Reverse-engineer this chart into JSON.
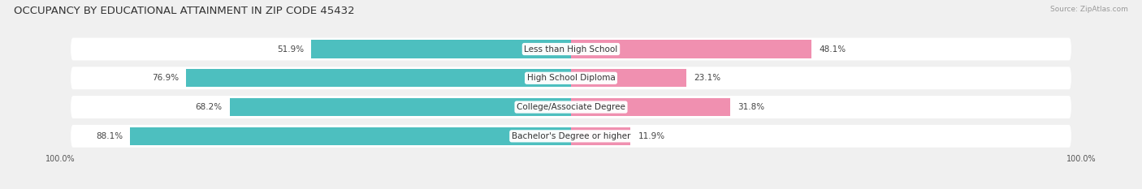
{
  "title": "OCCUPANCY BY EDUCATIONAL ATTAINMENT IN ZIP CODE 45432",
  "source": "Source: ZipAtlas.com",
  "categories": [
    "Less than High School",
    "High School Diploma",
    "College/Associate Degree",
    "Bachelor's Degree or higher"
  ],
  "owner_values": [
    51.9,
    76.9,
    68.2,
    88.1
  ],
  "renter_values": [
    48.1,
    23.1,
    31.8,
    11.9
  ],
  "owner_color": "#4DBFBF",
  "renter_color": "#F090B0",
  "background_color": "#f0f0f0",
  "row_bg_color": "#e8e8e8",
  "row_bg_color2": "#ffffff",
  "title_fontsize": 9.5,
  "bar_label_fontsize": 7.5,
  "category_fontsize": 7.5,
  "bar_height": 0.62,
  "figsize": [
    14.06,
    2.33
  ],
  "axis_label_left": "100.0%",
  "axis_label_right": "100.0%"
}
